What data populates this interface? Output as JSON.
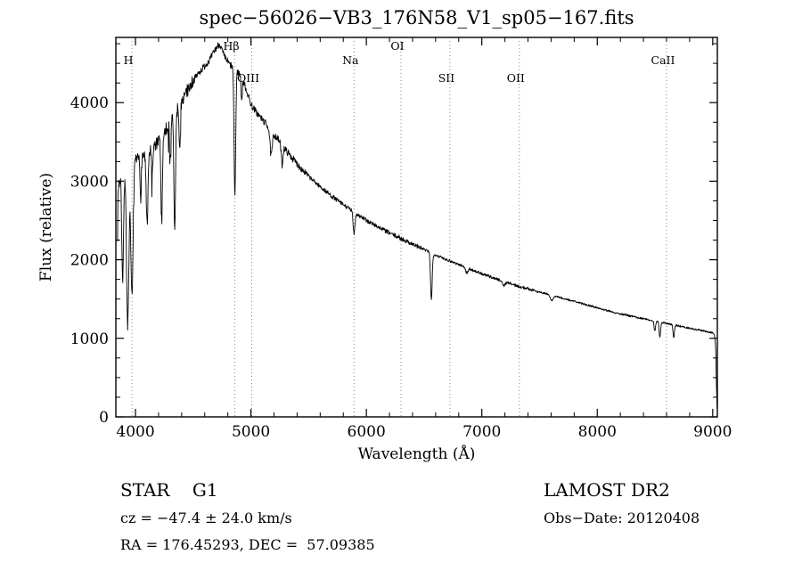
{
  "footer": {
    "class_label": "STAR    G1",
    "survey": "LAMOST DR2",
    "cz": "cz = −47.4 ± 24.0 km/s",
    "obs_date": "Obs−Date: 20120408",
    "coords": "RA = 176.45293, DEC =  57.09385"
  },
  "chart_data": {
    "type": "line",
    "title": "spec−56026−VB3_176N58_V1_sp05−167.fits",
    "xlabel": "Wavelength (Å)",
    "ylabel": "Flux (relative)",
    "xlim": [
      3830,
      9040
    ],
    "ylim": [
      0,
      4830
    ],
    "xticks": [
      4000,
      5000,
      6000,
      7000,
      8000,
      9000
    ],
    "yticks": [
      0,
      1000,
      2000,
      3000,
      4000
    ],
    "x_minor_step": 200,
    "y_minor_step": 250,
    "grid": false,
    "line_color": "#000000",
    "marker_line_color": "#888888",
    "marker_lines": [
      {
        "label": "H",
        "wavelength": 3970,
        "row": 1
      },
      {
        "label": "Hβ",
        "wavelength": 4861,
        "row": 0
      },
      {
        "label": "OIII",
        "wavelength": 5007,
        "row": 2
      },
      {
        "label": "Na",
        "wavelength": 5893,
        "row": 1
      },
      {
        "label": "OI",
        "wavelength": 6300,
        "row": 0
      },
      {
        "label": "SII",
        "wavelength": 6724,
        "row": 2
      },
      {
        "label": "OII",
        "wavelength": 7325,
        "row": 2
      },
      {
        "label": "CaII",
        "wavelength": 8600,
        "row": 1
      }
    ],
    "continuum": [
      [
        3845,
        2950
      ],
      [
        3900,
        3100
      ],
      [
        3960,
        3050
      ],
      [
        4000,
        3250
      ],
      [
        4050,
        3300
      ],
      [
        4100,
        3380
      ],
      [
        4150,
        3420
      ],
      [
        4200,
        3500
      ],
      [
        4250,
        3620
      ],
      [
        4300,
        3760
      ],
      [
        4350,
        3880
      ],
      [
        4400,
        4020
      ],
      [
        4450,
        4150
      ],
      [
        4500,
        4280
      ],
      [
        4550,
        4380
      ],
      [
        4600,
        4470
      ],
      [
        4650,
        4560
      ],
      [
        4700,
        4700
      ],
      [
        4730,
        4750
      ],
      [
        4770,
        4580
      ],
      [
        4820,
        4480
      ],
      [
        4870,
        4420
      ],
      [
        4920,
        4330
      ],
      [
        4970,
        4120
      ],
      [
        5000,
        3980
      ],
      [
        5050,
        3870
      ],
      [
        5100,
        3780
      ],
      [
        5150,
        3700
      ],
      [
        5200,
        3600
      ],
      [
        5300,
        3400
      ],
      [
        5400,
        3220
      ],
      [
        5500,
        3060
      ],
      [
        5600,
        2930
      ],
      [
        5700,
        2810
      ],
      [
        5800,
        2700
      ],
      [
        5900,
        2600
      ],
      [
        6000,
        2500
      ],
      [
        6100,
        2420
      ],
      [
        6200,
        2340
      ],
      [
        6300,
        2270
      ],
      [
        6400,
        2200
      ],
      [
        6500,
        2130
      ],
      [
        6600,
        2060
      ],
      [
        6700,
        2000
      ],
      [
        6800,
        1940
      ],
      [
        6900,
        1880
      ],
      [
        7000,
        1820
      ],
      [
        7100,
        1770
      ],
      [
        7200,
        1720
      ],
      [
        7300,
        1670
      ],
      [
        7400,
        1630
      ],
      [
        7500,
        1590
      ],
      [
        7600,
        1550
      ],
      [
        7700,
        1510
      ],
      [
        7800,
        1470
      ],
      [
        7900,
        1430
      ],
      [
        8000,
        1390
      ],
      [
        8100,
        1350
      ],
      [
        8200,
        1310
      ],
      [
        8300,
        1280
      ],
      [
        8400,
        1250
      ],
      [
        8500,
        1220
      ],
      [
        8600,
        1190
      ],
      [
        8700,
        1160
      ],
      [
        8800,
        1130
      ],
      [
        8900,
        1100
      ],
      [
        9000,
        1070
      ],
      [
        9015,
        1050
      ],
      [
        9025,
        900
      ],
      [
        9032,
        400
      ],
      [
        9038,
        100
      ]
    ],
    "absorption_features": [
      [
        3835,
        1000,
        7
      ],
      [
        3889,
        1400,
        7
      ],
      [
        3933,
        1900,
        10
      ],
      [
        3970,
        1600,
        9
      ],
      [
        4045,
        500,
        5
      ],
      [
        4101,
        950,
        8
      ],
      [
        4144,
        400,
        5
      ],
      [
        4227,
        1100,
        6
      ],
      [
        4300,
        500,
        5
      ],
      [
        4340,
        1500,
        7
      ],
      [
        4383,
        600,
        5
      ],
      [
        4861,
        1600,
        7
      ],
      [
        4920,
        300,
        5
      ],
      [
        5175,
        320,
        10
      ],
      [
        5270,
        250,
        7
      ],
      [
        5893,
        260,
        8
      ],
      [
        6563,
        600,
        7
      ],
      [
        6870,
        70,
        9
      ],
      [
        7190,
        60,
        10
      ],
      [
        7605,
        70,
        12
      ],
      [
        8498,
        130,
        6
      ],
      [
        8542,
        190,
        6
      ],
      [
        8662,
        160,
        6
      ]
    ],
    "noise_segments": [
      [
        3845,
        4500,
        85
      ],
      [
        4500,
        5500,
        45
      ],
      [
        5500,
        6500,
        28
      ],
      [
        6500,
        7500,
        18
      ],
      [
        7500,
        9040,
        12
      ]
    ],
    "noise_seed": 7,
    "sample_step_angstrom": 3
  }
}
